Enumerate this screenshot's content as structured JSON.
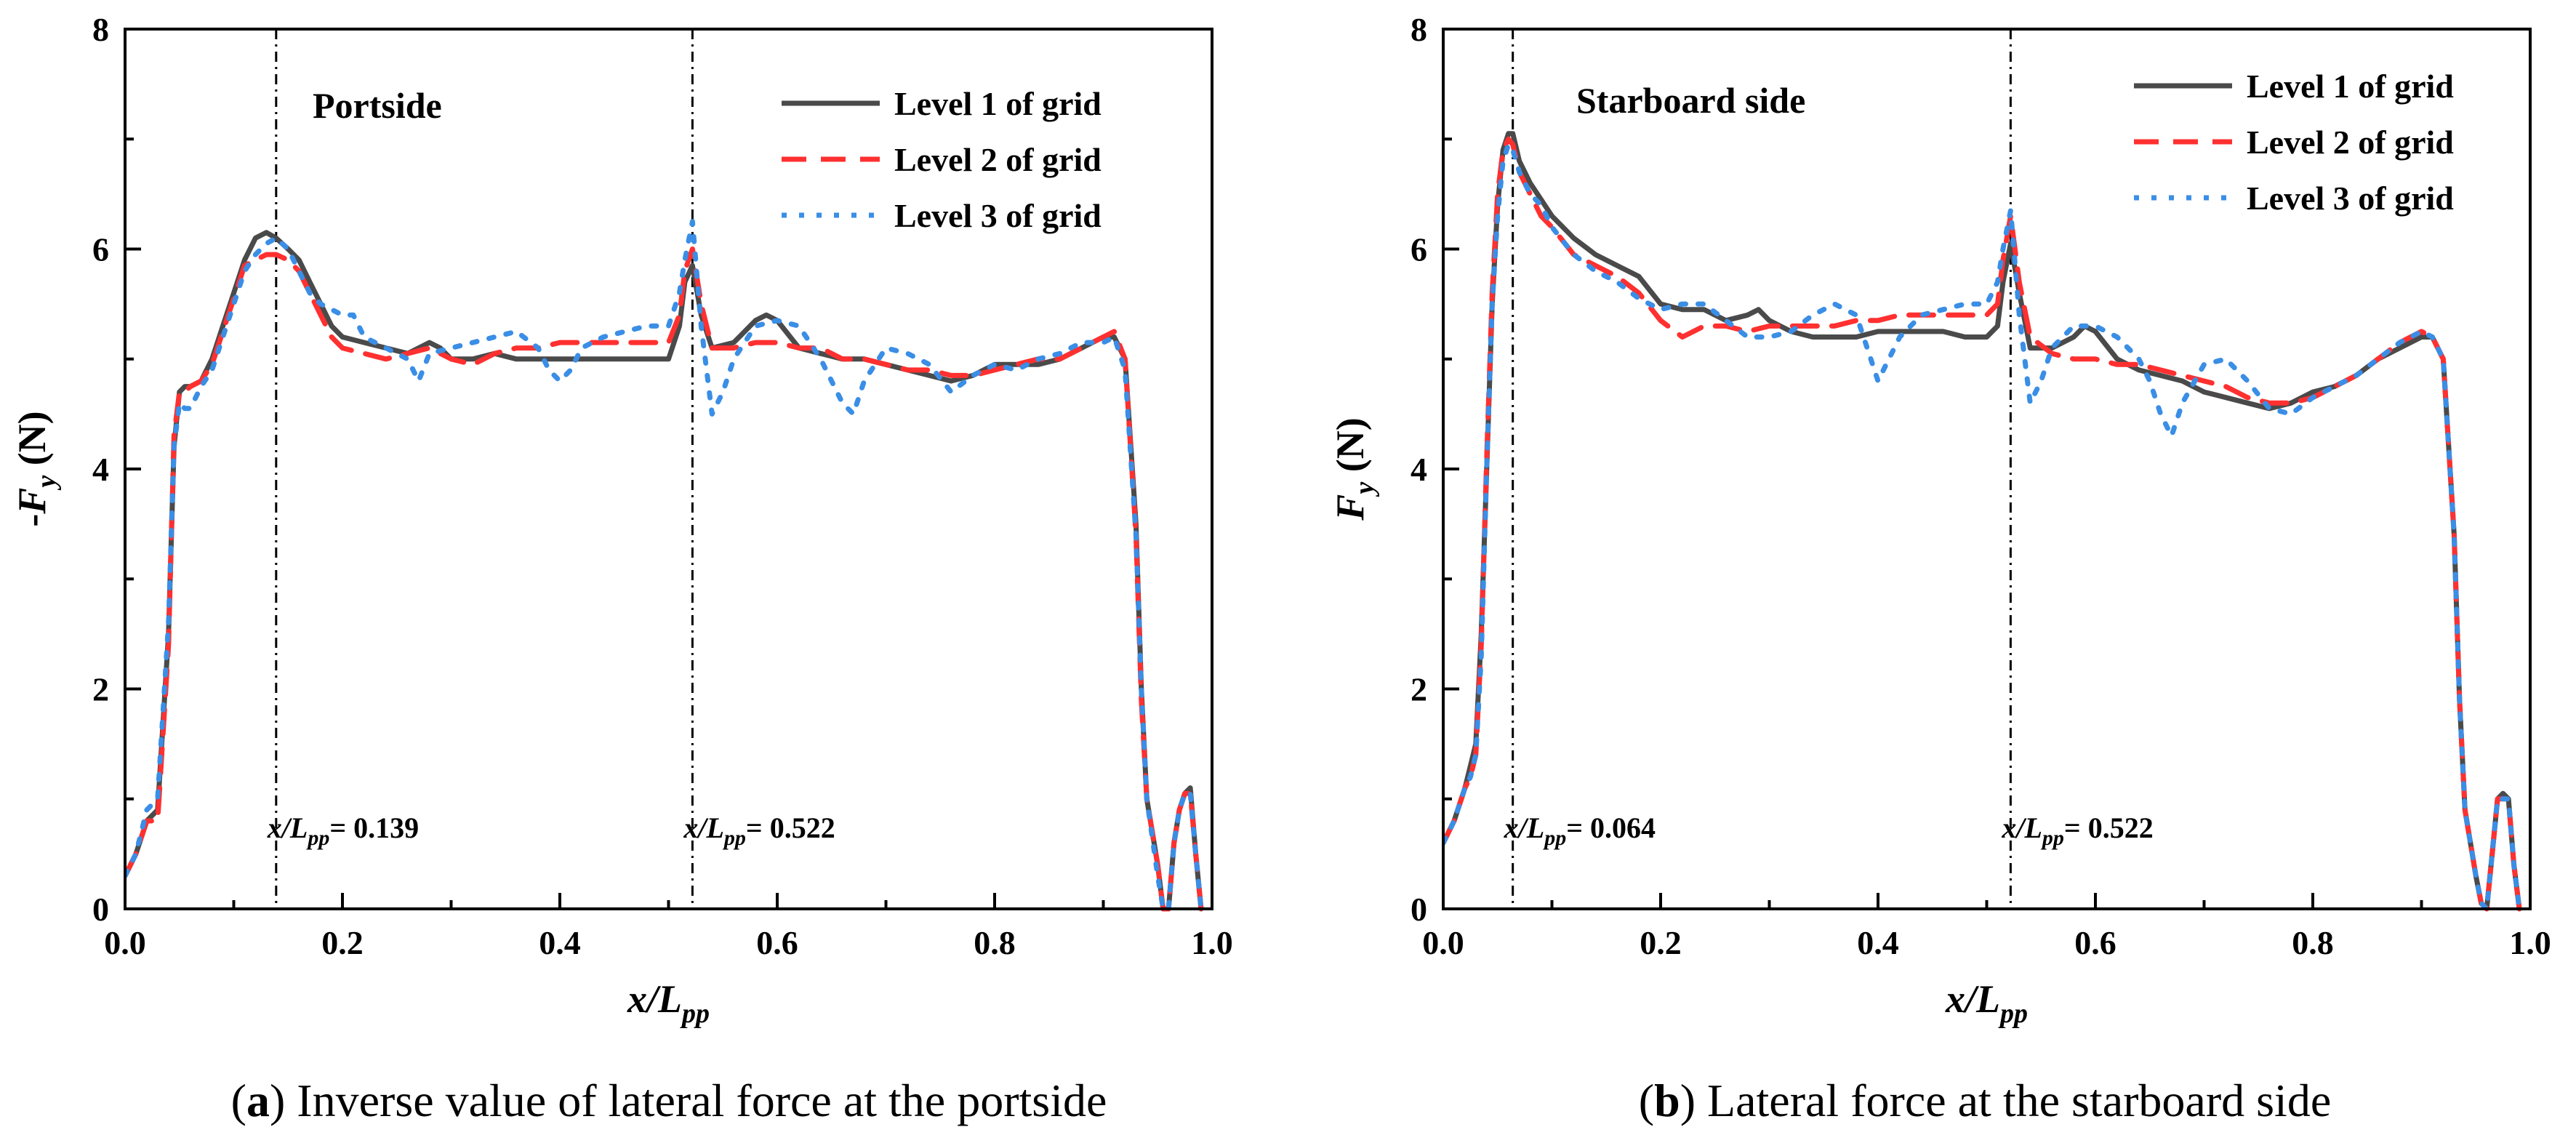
{
  "chart_data": [
    {
      "type": "line",
      "panel_id": "a",
      "caption_letter": "a",
      "caption_text": "Inverse value of lateral force at the portside",
      "side_label": "Portside",
      "ylabel_prefix": "-",
      "ylabel_main": "F",
      "ylabel_sub": "y",
      "ylabel_unit": " (N)",
      "xlabel_main": "x/L",
      "xlabel_sub": "pp",
      "xlim": [
        0,
        1.0
      ],
      "ylim": [
        0,
        8
      ],
      "xticks": [
        "0.0",
        "0.2",
        "0.4",
        "0.6",
        "0.8",
        "1.0"
      ],
      "yticks": [
        "0",
        "2",
        "4",
        "6",
        "8"
      ],
      "annotations": [
        {
          "x": 0.139,
          "prefix": "x/L",
          "sub": "pp",
          "text": "= 0.139"
        },
        {
          "x": 0.522,
          "prefix": "x/L",
          "sub": "pp",
          "text": "= 0.522"
        }
      ],
      "series": [
        {
          "name": "Level 1 of grid",
          "color": "#4a4a4a",
          "style": "solid",
          "x": [
            0.0,
            0.01,
            0.02,
            0.03,
            0.04,
            0.045,
            0.05,
            0.055,
            0.06,
            0.07,
            0.08,
            0.09,
            0.1,
            0.11,
            0.12,
            0.13,
            0.139,
            0.15,
            0.16,
            0.17,
            0.18,
            0.19,
            0.2,
            0.22,
            0.24,
            0.26,
            0.28,
            0.29,
            0.3,
            0.32,
            0.34,
            0.36,
            0.38,
            0.4,
            0.42,
            0.44,
            0.46,
            0.48,
            0.5,
            0.51,
            0.515,
            0.522,
            0.53,
            0.54,
            0.56,
            0.58,
            0.59,
            0.6,
            0.62,
            0.64,
            0.66,
            0.68,
            0.7,
            0.72,
            0.74,
            0.76,
            0.78,
            0.8,
            0.82,
            0.84,
            0.86,
            0.88,
            0.9,
            0.91,
            0.92,
            0.93,
            0.935,
            0.94,
            0.95,
            0.955,
            0.96,
            0.965,
            0.97,
            0.975,
            0.98,
            0.985,
            0.99
          ],
          "y": [
            0.3,
            0.5,
            0.8,
            0.9,
            2.5,
            4.2,
            4.7,
            4.75,
            4.75,
            4.8,
            5.0,
            5.3,
            5.6,
            5.9,
            6.1,
            6.15,
            6.1,
            6.0,
            5.9,
            5.7,
            5.5,
            5.3,
            5.2,
            5.15,
            5.1,
            5.05,
            5.15,
            5.1,
            5.0,
            5.0,
            5.05,
            5.0,
            5.0,
            5.0,
            5.0,
            5.0,
            5.0,
            5.0,
            5.0,
            5.3,
            5.7,
            5.85,
            5.4,
            5.1,
            5.15,
            5.35,
            5.4,
            5.35,
            5.1,
            5.05,
            5.0,
            5.0,
            4.95,
            4.9,
            4.85,
            4.8,
            4.85,
            4.95,
            4.95,
            4.95,
            5.0,
            5.1,
            5.2,
            5.2,
            5.0,
            3.5,
            2.0,
            1.0,
            0.4,
            0.0,
            0.0,
            0.6,
            0.9,
            1.05,
            1.1,
            0.5,
            0.0
          ]
        },
        {
          "name": "Level 2 of grid",
          "color": "#ff3030",
          "style": "dashed",
          "x": [
            0.0,
            0.01,
            0.02,
            0.03,
            0.04,
            0.045,
            0.05,
            0.055,
            0.06,
            0.07,
            0.08,
            0.09,
            0.1,
            0.11,
            0.12,
            0.13,
            0.139,
            0.15,
            0.16,
            0.17,
            0.18,
            0.19,
            0.2,
            0.22,
            0.24,
            0.26,
            0.28,
            0.3,
            0.32,
            0.34,
            0.36,
            0.38,
            0.4,
            0.42,
            0.44,
            0.46,
            0.48,
            0.5,
            0.51,
            0.515,
            0.522,
            0.53,
            0.54,
            0.56,
            0.58,
            0.6,
            0.62,
            0.64,
            0.66,
            0.68,
            0.7,
            0.72,
            0.74,
            0.76,
            0.78,
            0.8,
            0.82,
            0.84,
            0.86,
            0.88,
            0.9,
            0.91,
            0.92,
            0.93,
            0.935,
            0.94,
            0.95,
            0.955,
            0.96,
            0.965,
            0.97,
            0.975,
            0.98,
            0.985,
            0.99
          ],
          "y": [
            0.3,
            0.5,
            0.8,
            0.8,
            2.4,
            4.3,
            4.7,
            4.7,
            4.75,
            4.8,
            4.95,
            5.25,
            5.55,
            5.85,
            5.9,
            5.95,
            5.95,
            5.9,
            5.8,
            5.6,
            5.4,
            5.2,
            5.1,
            5.05,
            5.0,
            5.05,
            5.1,
            5.0,
            4.95,
            5.05,
            5.1,
            5.1,
            5.15,
            5.15,
            5.15,
            5.15,
            5.15,
            5.15,
            5.4,
            5.8,
            6.0,
            5.5,
            5.1,
            5.1,
            5.15,
            5.15,
            5.1,
            5.1,
            5.0,
            5.0,
            4.95,
            4.9,
            4.9,
            4.85,
            4.85,
            4.9,
            4.95,
            5.0,
            5.0,
            5.1,
            5.2,
            5.25,
            5.0,
            3.4,
            1.9,
            1.0,
            0.4,
            0.0,
            0.0,
            0.6,
            0.9,
            1.05,
            1.05,
            0.5,
            0.0
          ]
        },
        {
          "name": "Level 3 of grid",
          "color": "#3a8ee6",
          "style": "dotted",
          "x": [
            0.0,
            0.01,
            0.02,
            0.03,
            0.04,
            0.045,
            0.05,
            0.055,
            0.06,
            0.07,
            0.08,
            0.09,
            0.1,
            0.11,
            0.12,
            0.13,
            0.139,
            0.15,
            0.16,
            0.17,
            0.18,
            0.19,
            0.2,
            0.21,
            0.22,
            0.24,
            0.26,
            0.27,
            0.28,
            0.3,
            0.32,
            0.34,
            0.36,
            0.38,
            0.39,
            0.4,
            0.41,
            0.42,
            0.44,
            0.46,
            0.48,
            0.5,
            0.51,
            0.515,
            0.522,
            0.53,
            0.54,
            0.55,
            0.56,
            0.58,
            0.6,
            0.62,
            0.64,
            0.66,
            0.67,
            0.68,
            0.7,
            0.72,
            0.74,
            0.76,
            0.78,
            0.8,
            0.82,
            0.84,
            0.86,
            0.88,
            0.9,
            0.91,
            0.92,
            0.93,
            0.935,
            0.94,
            0.95,
            0.955,
            0.96,
            0.965,
            0.97,
            0.975,
            0.98,
            0.985,
            0.99
          ],
          "y": [
            0.3,
            0.5,
            0.9,
            1.0,
            2.6,
            4.2,
            4.6,
            4.55,
            4.55,
            4.75,
            4.9,
            5.2,
            5.5,
            5.8,
            5.95,
            6.05,
            6.1,
            6.0,
            5.8,
            5.6,
            5.5,
            5.45,
            5.4,
            5.4,
            5.2,
            5.1,
            5.0,
            4.8,
            5.05,
            5.1,
            5.15,
            5.2,
            5.25,
            5.1,
            4.9,
            4.8,
            4.9,
            5.1,
            5.2,
            5.25,
            5.3,
            5.3,
            5.6,
            5.9,
            6.25,
            5.3,
            4.5,
            4.7,
            5.0,
            5.3,
            5.35,
            5.3,
            5.0,
            4.6,
            4.5,
            4.8,
            5.1,
            5.05,
            4.95,
            4.7,
            4.85,
            4.95,
            4.9,
            5.0,
            5.05,
            5.15,
            5.15,
            5.2,
            4.9,
            3.4,
            2.0,
            1.0,
            0.3,
            0.0,
            0.0,
            0.6,
            0.9,
            1.05,
            1.05,
            0.5,
            0.0
          ]
        }
      ]
    },
    {
      "type": "line",
      "panel_id": "b",
      "caption_letter": "b",
      "caption_text": "Lateral force at the starboard side",
      "side_label": "Starboard side",
      "ylabel_prefix": "",
      "ylabel_main": "F",
      "ylabel_sub": "y",
      "ylabel_unit": " (N)",
      "xlabel_main": "x/L",
      "xlabel_sub": "pp",
      "xlim": [
        0,
        1.0
      ],
      "ylim": [
        0,
        8
      ],
      "xticks": [
        "0.0",
        "0.2",
        "0.4",
        "0.6",
        "0.8",
        "1.0"
      ],
      "yticks": [
        "0",
        "2",
        "4",
        "6",
        "8"
      ],
      "annotations": [
        {
          "x": 0.064,
          "prefix": "x/L",
          "sub": "pp",
          "text": "= 0.064"
        },
        {
          "x": 0.522,
          "prefix": "x/L",
          "sub": "pp",
          "text": "= 0.522"
        }
      ],
      "series": [
        {
          "name": "Level 1 of grid",
          "color": "#4a4a4a",
          "style": "solid",
          "x": [
            0.0,
            0.01,
            0.02,
            0.025,
            0.03,
            0.035,
            0.04,
            0.045,
            0.05,
            0.055,
            0.06,
            0.064,
            0.07,
            0.08,
            0.09,
            0.1,
            0.12,
            0.14,
            0.16,
            0.18,
            0.2,
            0.22,
            0.24,
            0.26,
            0.28,
            0.29,
            0.3,
            0.32,
            0.34,
            0.36,
            0.38,
            0.4,
            0.42,
            0.44,
            0.46,
            0.48,
            0.5,
            0.51,
            0.515,
            0.522,
            0.53,
            0.54,
            0.56,
            0.58,
            0.59,
            0.6,
            0.62,
            0.64,
            0.66,
            0.68,
            0.7,
            0.72,
            0.74,
            0.76,
            0.78,
            0.8,
            0.82,
            0.84,
            0.86,
            0.88,
            0.9,
            0.91,
            0.92,
            0.93,
            0.935,
            0.94,
            0.95,
            0.955,
            0.96,
            0.965,
            0.97,
            0.975,
            0.98,
            0.985,
            0.99
          ],
          "y": [
            0.6,
            0.8,
            1.1,
            1.3,
            1.5,
            2.5,
            4.0,
            5.5,
            6.4,
            6.9,
            7.05,
            7.05,
            6.8,
            6.6,
            6.45,
            6.3,
            6.1,
            5.95,
            5.85,
            5.75,
            5.5,
            5.45,
            5.45,
            5.35,
            5.4,
            5.45,
            5.35,
            5.25,
            5.2,
            5.2,
            5.2,
            5.25,
            5.25,
            5.25,
            5.25,
            5.2,
            5.2,
            5.3,
            5.7,
            6.05,
            5.6,
            5.1,
            5.1,
            5.2,
            5.3,
            5.25,
            5.0,
            4.9,
            4.85,
            4.8,
            4.7,
            4.65,
            4.6,
            4.55,
            4.6,
            4.7,
            4.75,
            4.85,
            5.0,
            5.1,
            5.2,
            5.2,
            5.0,
            3.4,
            1.9,
            0.9,
            0.3,
            0.05,
            0.0,
            0.5,
            1.0,
            1.05,
            1.0,
            0.4,
            0.0
          ]
        },
        {
          "name": "Level 2 of grid",
          "color": "#ff3030",
          "style": "dashed",
          "x": [
            0.0,
            0.01,
            0.02,
            0.025,
            0.03,
            0.035,
            0.04,
            0.045,
            0.05,
            0.055,
            0.06,
            0.064,
            0.07,
            0.08,
            0.09,
            0.1,
            0.12,
            0.14,
            0.16,
            0.18,
            0.2,
            0.22,
            0.24,
            0.26,
            0.28,
            0.3,
            0.32,
            0.34,
            0.36,
            0.38,
            0.4,
            0.42,
            0.44,
            0.46,
            0.48,
            0.5,
            0.51,
            0.515,
            0.522,
            0.53,
            0.54,
            0.56,
            0.58,
            0.6,
            0.62,
            0.64,
            0.66,
            0.68,
            0.7,
            0.72,
            0.74,
            0.76,
            0.78,
            0.8,
            0.82,
            0.84,
            0.86,
            0.88,
            0.9,
            0.91,
            0.92,
            0.93,
            0.935,
            0.94,
            0.95,
            0.955,
            0.96,
            0.965,
            0.97,
            0.975,
            0.98,
            0.985,
            0.99
          ],
          "y": [
            0.6,
            0.8,
            1.1,
            1.2,
            1.4,
            2.4,
            4.1,
            5.6,
            6.5,
            6.9,
            7.0,
            6.95,
            6.7,
            6.5,
            6.3,
            6.2,
            5.95,
            5.85,
            5.75,
            5.6,
            5.35,
            5.2,
            5.3,
            5.3,
            5.25,
            5.3,
            5.3,
            5.3,
            5.3,
            5.35,
            5.35,
            5.4,
            5.4,
            5.4,
            5.4,
            5.4,
            5.5,
            5.9,
            6.3,
            5.7,
            5.2,
            5.05,
            5.0,
            5.0,
            4.95,
            4.95,
            4.9,
            4.85,
            4.8,
            4.75,
            4.65,
            4.6,
            4.6,
            4.65,
            4.75,
            4.85,
            5.0,
            5.15,
            5.25,
            5.2,
            5.0,
            3.4,
            1.9,
            0.9,
            0.3,
            0.05,
            0.0,
            0.5,
            1.0,
            1.0,
            1.0,
            0.4,
            0.0
          ]
        },
        {
          "name": "Level 3 of grid",
          "color": "#3a8ee6",
          "style": "dotted",
          "x": [
            0.0,
            0.01,
            0.02,
            0.025,
            0.03,
            0.035,
            0.04,
            0.045,
            0.05,
            0.055,
            0.06,
            0.064,
            0.07,
            0.08,
            0.09,
            0.1,
            0.12,
            0.14,
            0.16,
            0.18,
            0.2,
            0.22,
            0.24,
            0.26,
            0.28,
            0.3,
            0.32,
            0.34,
            0.36,
            0.38,
            0.39,
            0.4,
            0.41,
            0.42,
            0.44,
            0.46,
            0.48,
            0.5,
            0.51,
            0.515,
            0.522,
            0.53,
            0.54,
            0.55,
            0.56,
            0.58,
            0.6,
            0.62,
            0.64,
            0.65,
            0.66,
            0.67,
            0.68,
            0.7,
            0.72,
            0.74,
            0.76,
            0.78,
            0.8,
            0.82,
            0.84,
            0.86,
            0.88,
            0.9,
            0.91,
            0.92,
            0.93,
            0.935,
            0.94,
            0.95,
            0.955,
            0.96,
            0.965,
            0.97,
            0.975,
            0.98,
            0.985,
            0.99
          ],
          "y": [
            0.6,
            0.8,
            1.1,
            1.2,
            1.4,
            2.3,
            4.0,
            5.5,
            6.3,
            6.8,
            6.95,
            6.9,
            6.7,
            6.5,
            6.4,
            6.2,
            5.95,
            5.8,
            5.7,
            5.55,
            5.45,
            5.5,
            5.5,
            5.35,
            5.2,
            5.2,
            5.25,
            5.4,
            5.5,
            5.4,
            5.1,
            4.8,
            5.0,
            5.2,
            5.4,
            5.45,
            5.5,
            5.5,
            5.7,
            6.0,
            6.35,
            5.4,
            4.6,
            4.8,
            5.1,
            5.3,
            5.3,
            5.2,
            5.0,
            4.8,
            4.5,
            4.3,
            4.6,
            4.95,
            5.0,
            4.8,
            4.55,
            4.5,
            4.65,
            4.75,
            4.85,
            5.0,
            5.15,
            5.25,
            5.2,
            5.0,
            3.4,
            1.9,
            0.9,
            0.3,
            0.05,
            0.0,
            0.5,
            1.0,
            1.0,
            1.0,
            0.4,
            0.0
          ]
        }
      ]
    }
  ]
}
